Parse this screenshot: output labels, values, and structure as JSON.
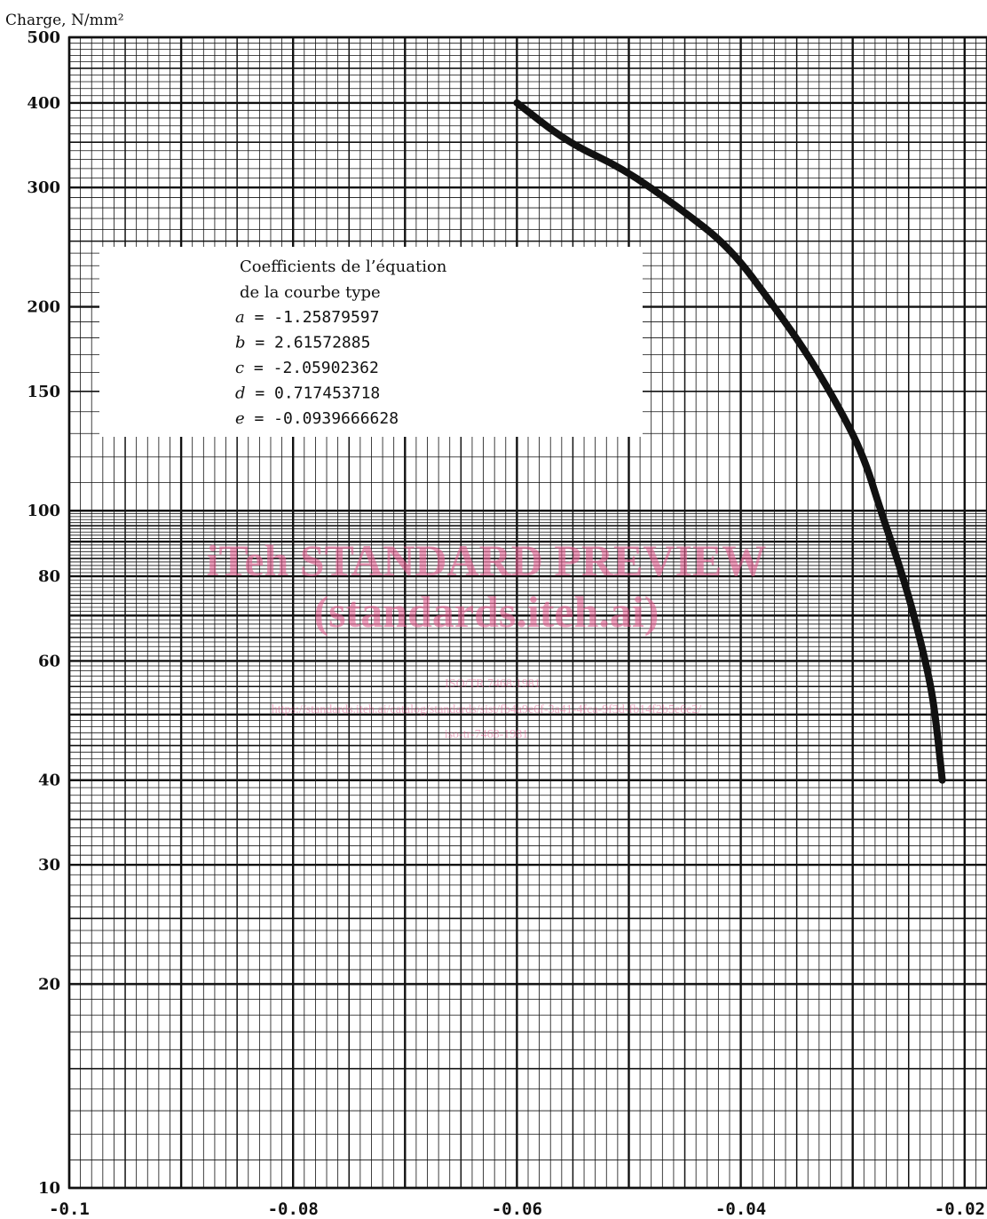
{
  "chart_data": {
    "type": "line",
    "ylabel": "Charge, N/mm²",
    "xlabel": "",
    "yscale": "log",
    "ylim": [
      10,
      500
    ],
    "xlim": [
      -0.1,
      -0.018
    ],
    "y_ticks": [
      10,
      20,
      30,
      40,
      60,
      80,
      100,
      150,
      200,
      300,
      400,
      500
    ],
    "y_tick_labels": [
      "10",
      "20",
      "30",
      "40",
      "60",
      "80",
      "100",
      "150",
      "200",
      "300",
      "400",
      "500"
    ],
    "x_ticks": [
      -0.1,
      -0.08,
      -0.06,
      -0.04,
      -0.02
    ],
    "x_tick_labels": [
      "-0.1",
      "-0.08",
      "-0.06",
      "-0.04",
      "-0.02"
    ],
    "grid": true,
    "series": [
      {
        "x": [
          -0.06,
          -0.0555,
          -0.0505,
          -0.0455,
          -0.041,
          -0.037,
          -0.034,
          -0.031,
          -0.029,
          -0.0275,
          -0.0255,
          -0.024,
          -0.023,
          -0.0225,
          -0.022
        ],
        "y": [
          400,
          350,
          320,
          280,
          245,
          200,
          170,
          140,
          120,
          100,
          80,
          65,
          55,
          48,
          40
        ],
        "color": "#111111"
      }
    ]
  },
  "coefficients_box": {
    "title_line1": "Coefficients de l’équation",
    "title_line2": "de la courbe type",
    "rows": [
      {
        "var": "a",
        "val": "-1.25879597"
      },
      {
        "var": "b",
        "val": "2.61572885"
      },
      {
        "var": "c",
        "val": "-2.05902362"
      },
      {
        "var": "d",
        "val": "0.717453718"
      },
      {
        "var": "e",
        "val": "-0.0939666628"
      }
    ]
  },
  "watermark": {
    "line1": "iTeh STANDARD PREVIEW",
    "line2": "(standards.iteh.ai)",
    "small1": "ISO/TR 7468:1981",
    "small2": "https://standards.iteh.ai/catalog/standards/sist/fb4a9e6f-3a41-4fca-9f3d-fb14f2b5e6e2/",
    "small3": "iso-tr-7468-1981"
  },
  "colors": {
    "grid": "#111111",
    "curve": "#111111",
    "watermark": "#e05a8c"
  }
}
